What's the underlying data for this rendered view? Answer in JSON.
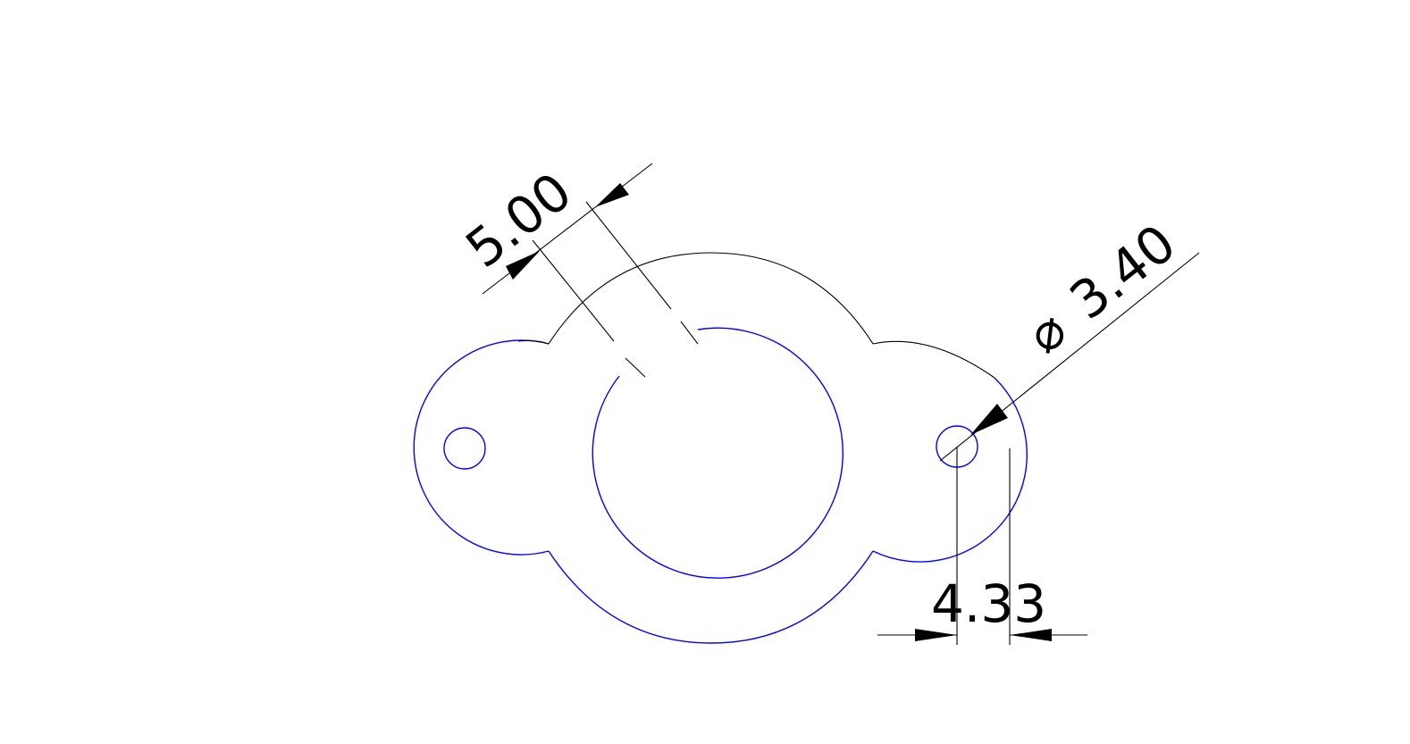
{
  "drawing": {
    "colors": {
      "outline": "#0000ff",
      "construction": "#000000",
      "dimension": "#000000",
      "background": "#ffffff"
    },
    "dimensions": {
      "aligned_width": {
        "value": "5.00"
      },
      "hole_diameter": {
        "symbol": "⌀",
        "value": "3.40"
      },
      "horizontal_offset": {
        "value": "4.33"
      }
    }
  }
}
